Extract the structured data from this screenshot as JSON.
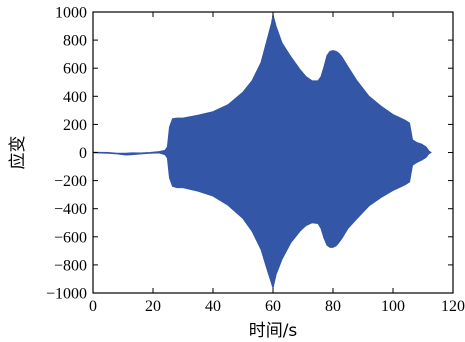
{
  "chart_data": {
    "type": "area",
    "title": "",
    "xlabel": "时间/s",
    "ylabel": "应变",
    "xlim": [
      0,
      120
    ],
    "ylim": [
      -1000,
      1000
    ],
    "x_ticks": [
      0,
      20,
      40,
      60,
      80,
      100,
      120
    ],
    "y_ticks": [
      1000,
      800,
      600,
      400,
      200,
      0,
      -200,
      -400,
      -600,
      -800,
      -1000
    ],
    "grid": false,
    "legend": "none",
    "series": [
      {
        "color": "#3356a6",
        "x": [
          0,
          5,
          8,
          11,
          13,
          16,
          19,
          22,
          24,
          24.8,
          25.5,
          26.5,
          28,
          30,
          35,
          40,
          45,
          50,
          53,
          56,
          58,
          59.5,
          60,
          61,
          63,
          66,
          69,
          71,
          73,
          75,
          76,
          77,
          78,
          79,
          80,
          81,
          82,
          83,
          85,
          88,
          92,
          96,
          100,
          102,
          104,
          105.5,
          106.5,
          108,
          109.5,
          111,
          112,
          112.7
        ],
        "upper": [
          2,
          0,
          -5,
          -5,
          -3,
          -4,
          0,
          6,
          15,
          40,
          180,
          240,
          245,
          245,
          265,
          290,
          340,
          430,
          510,
          640,
          800,
          920,
          980,
          900,
          780,
          680,
          590,
          540,
          510,
          510,
          540,
          610,
          690,
          720,
          725,
          720,
          705,
          680,
          610,
          510,
          400,
          330,
          270,
          250,
          230,
          210,
          90,
          70,
          60,
          40,
          10,
          0
        ],
        "lower": [
          -2,
          -5,
          -10,
          -18,
          -15,
          -10,
          -5,
          -3,
          -15,
          -40,
          -180,
          -240,
          -250,
          -250,
          -275,
          -310,
          -375,
          -470,
          -560,
          -690,
          -830,
          -930,
          -965,
          -870,
          -760,
          -640,
          -560,
          -520,
          -500,
          -505,
          -540,
          -610,
          -660,
          -675,
          -675,
          -665,
          -640,
          -610,
          -540,
          -470,
          -380,
          -320,
          -270,
          -250,
          -230,
          -210,
          -90,
          -70,
          -55,
          -35,
          -8,
          0
        ]
      }
    ]
  }
}
